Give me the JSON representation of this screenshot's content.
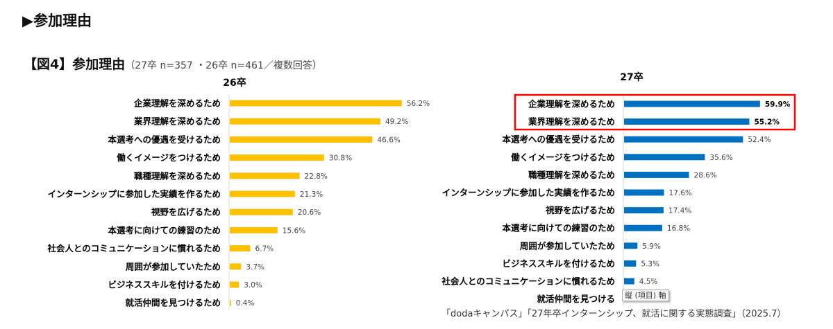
{
  "section_title": "▶参加理由",
  "figure_title": "【図4】参加理由",
  "figure_note": "（27卒 n=357 ・26卒 n=461／複数回答）",
  "source": "「dodaキャンパス」「27年卒インターンシップ、就活に関する実態調査」（2025.7）",
  "tooltip": "縦 (項目) 軸",
  "chart_data": [
    {
      "type": "bar",
      "orientation": "horizontal",
      "title": "26卒",
      "color": "#FFC000",
      "unit": "%",
      "categories": [
        "企業理解を深めるため",
        "業界理解を深めるため",
        "本選考への優遇を受けるため",
        "働くイメージをつけるため",
        "職種理解を深めるため",
        "インターンシップに参加した実績を作るため",
        "視野を広げるため",
        "本選考に向けての練習のため",
        "社会人とのコミュニケーションに慣れるため",
        "周囲が参加していたため",
        "ビジネススキルを付けるため",
        "就活仲間を見つけるため"
      ],
      "values": [
        56.2,
        49.2,
        46.6,
        30.8,
        22.8,
        21.3,
        20.6,
        15.6,
        6.7,
        3.7,
        3.0,
        0.4
      ]
    },
    {
      "type": "bar",
      "orientation": "horizontal",
      "title": "27卒",
      "color": "#0070C0",
      "unit": "%",
      "highlight_color": "#FF0000",
      "highlighted": [
        0,
        1
      ],
      "categories": [
        "企業理解を深めるため",
        "業界理解を深めるため",
        "本選考への優遇を受けるため",
        "働くイメージをつけるため",
        "職種理解を深めるため",
        "インターンシップに参加した実績を作るため",
        "視野を広げるため",
        "本選考に向けての練習のため",
        "周囲が参加していたため",
        "ビジネススキルを付けるため",
        "社会人とのコミュニケーションに慣れるため",
        "就活仲間を見つける"
      ],
      "values": [
        59.9,
        55.2,
        52.4,
        35.6,
        28.6,
        17.6,
        17.4,
        16.8,
        5.9,
        5.3,
        4.5,
        null
      ]
    }
  ]
}
